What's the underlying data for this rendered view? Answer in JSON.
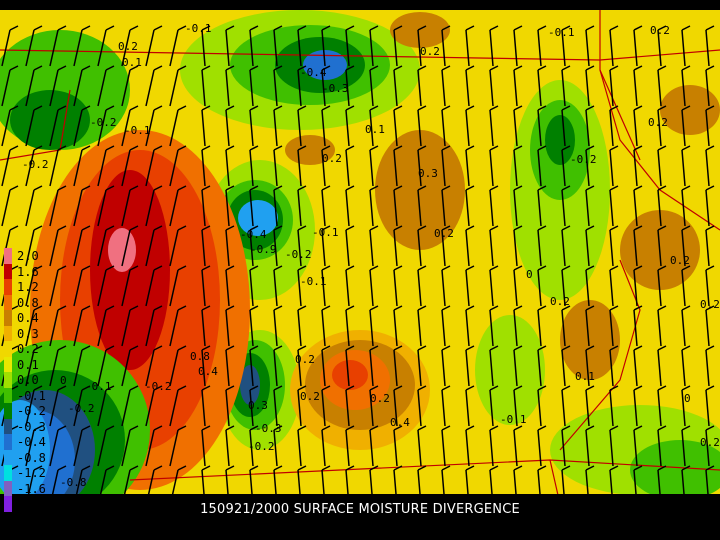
{
  "caption": "150921/2000 SURFACE MOISTURE DIVERGENCE",
  "legend": {
    "levels": [
      "2.0",
      "1.6",
      "1.2",
      "0.8",
      "0.4",
      "0.3",
      "0.2",
      "0.1",
      "0.0",
      "-0.1",
      "-0.2",
      "-0.3",
      "-0.4",
      "-0.8",
      "-1.2",
      "-1.6",
      "-2.0"
    ],
    "colors": [
      "#f07080",
      "#c00000",
      "#e84000",
      "#f07000",
      "#c88000",
      "#f0b000",
      "#f0d800",
      "#e8e800",
      "#a0e000",
      "#40c000",
      "#008000",
      "#205080",
      "#2070d0",
      "#20a0f0",
      "#00e0e0",
      "#8060c0",
      "#8020e0"
    ]
  },
  "contour_labels": [
    "-0.1",
    "0.2",
    "0.1",
    "-0.4",
    "-0.3",
    "0.1",
    "0.2",
    "-0.1",
    "0.2",
    "0.2",
    "-0.2",
    "-0.1",
    "-0.2",
    "0.2",
    "-0.2",
    "0.3",
    "0.2",
    "0.2",
    "-0.4",
    "-0.9",
    "-0.2",
    "-0.1",
    "0.2",
    "-0.1",
    "0",
    "0.2",
    "0.1",
    "0.2",
    "-0.2",
    "0.8",
    "0.4",
    "0.2",
    "0.2",
    "0.4",
    "0.3",
    "-0.3",
    "-0.2",
    "-0.1",
    "0",
    "0.2",
    "0",
    "-0.1",
    "-0.8",
    "-0.2"
  ],
  "colors": {
    "background": "#000000",
    "field_base": "#f0d800",
    "state_borders": "#c00000",
    "barbs": "#000000",
    "caption": "#ffffff"
  }
}
